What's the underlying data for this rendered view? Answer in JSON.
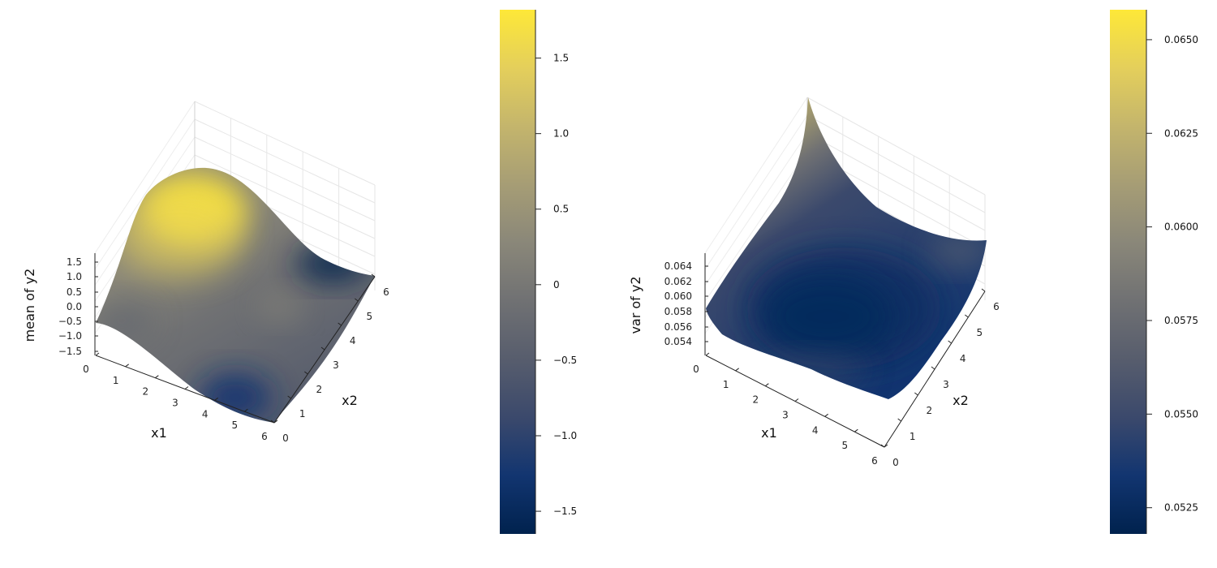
{
  "chart_data": [
    {
      "type": "surface",
      "xlabel": "x1",
      "ylabel": "x2",
      "zlabel": "mean of y2",
      "x_ticks": [
        "0",
        "1",
        "2",
        "3",
        "4",
        "5",
        "6"
      ],
      "y_ticks": [
        "0",
        "1",
        "2",
        "3",
        "4",
        "5",
        "6"
      ],
      "z_ticks": [
        "−1.5",
        "−1.0",
        "−0.5",
        "0.0",
        "0.5",
        "1.0",
        "1.5"
      ],
      "colorbar_ticks": [
        "1.5",
        "1.0",
        "0.5",
        "0",
        "−0.5",
        "−1.0",
        "−1.5"
      ],
      "colorbar_range": [
        -1.65,
        1.82
      ],
      "colormap": "cividis",
      "colorbar_colors": [
        "#00224e",
        "#123570",
        "#3b496c",
        "#575d6d",
        "#707173",
        "#8a8779",
        "#a69d75",
        "#c4b56c",
        "#e4cf5b",
        "#fee838"
      ],
      "surface_corners": {
        "x1=0,x2=0": -0.5,
        "x1=6,x2=0": -1.3,
        "x1=0,x2=6": 1.8,
        "x1=6,x2=6": -1.6
      },
      "grid": true
    },
    {
      "type": "surface",
      "xlabel": "x1",
      "ylabel": "x2",
      "zlabel": "var of y2",
      "x_ticks": [
        "0",
        "1",
        "2",
        "3",
        "4",
        "5",
        "6"
      ],
      "y_ticks": [
        "0",
        "1",
        "2",
        "3",
        "4",
        "5",
        "6"
      ],
      "z_ticks": [
        "0.054",
        "0.056",
        "0.058",
        "0.060",
        "0.062",
        "0.064"
      ],
      "colorbar_ticks": [
        "0.0650",
        "0.0625",
        "0.0600",
        "0.0575",
        "0.0550",
        "0.0525"
      ],
      "colorbar_range": [
        0.0518,
        0.0658
      ],
      "colormap": "cividis",
      "colorbar_colors": [
        "#00224e",
        "#123570",
        "#3b496c",
        "#575d6d",
        "#707173",
        "#8a8779",
        "#a69d75",
        "#c4b56c",
        "#e4cf5b",
        "#fee838"
      ],
      "surface_corners": {
        "x1=0,x2=0": 0.058,
        "x1=6,x2=0": 0.057,
        "x1=0,x2=6": 0.0658,
        "x1=6,x2=6": 0.0575
      },
      "grid": true
    }
  ]
}
